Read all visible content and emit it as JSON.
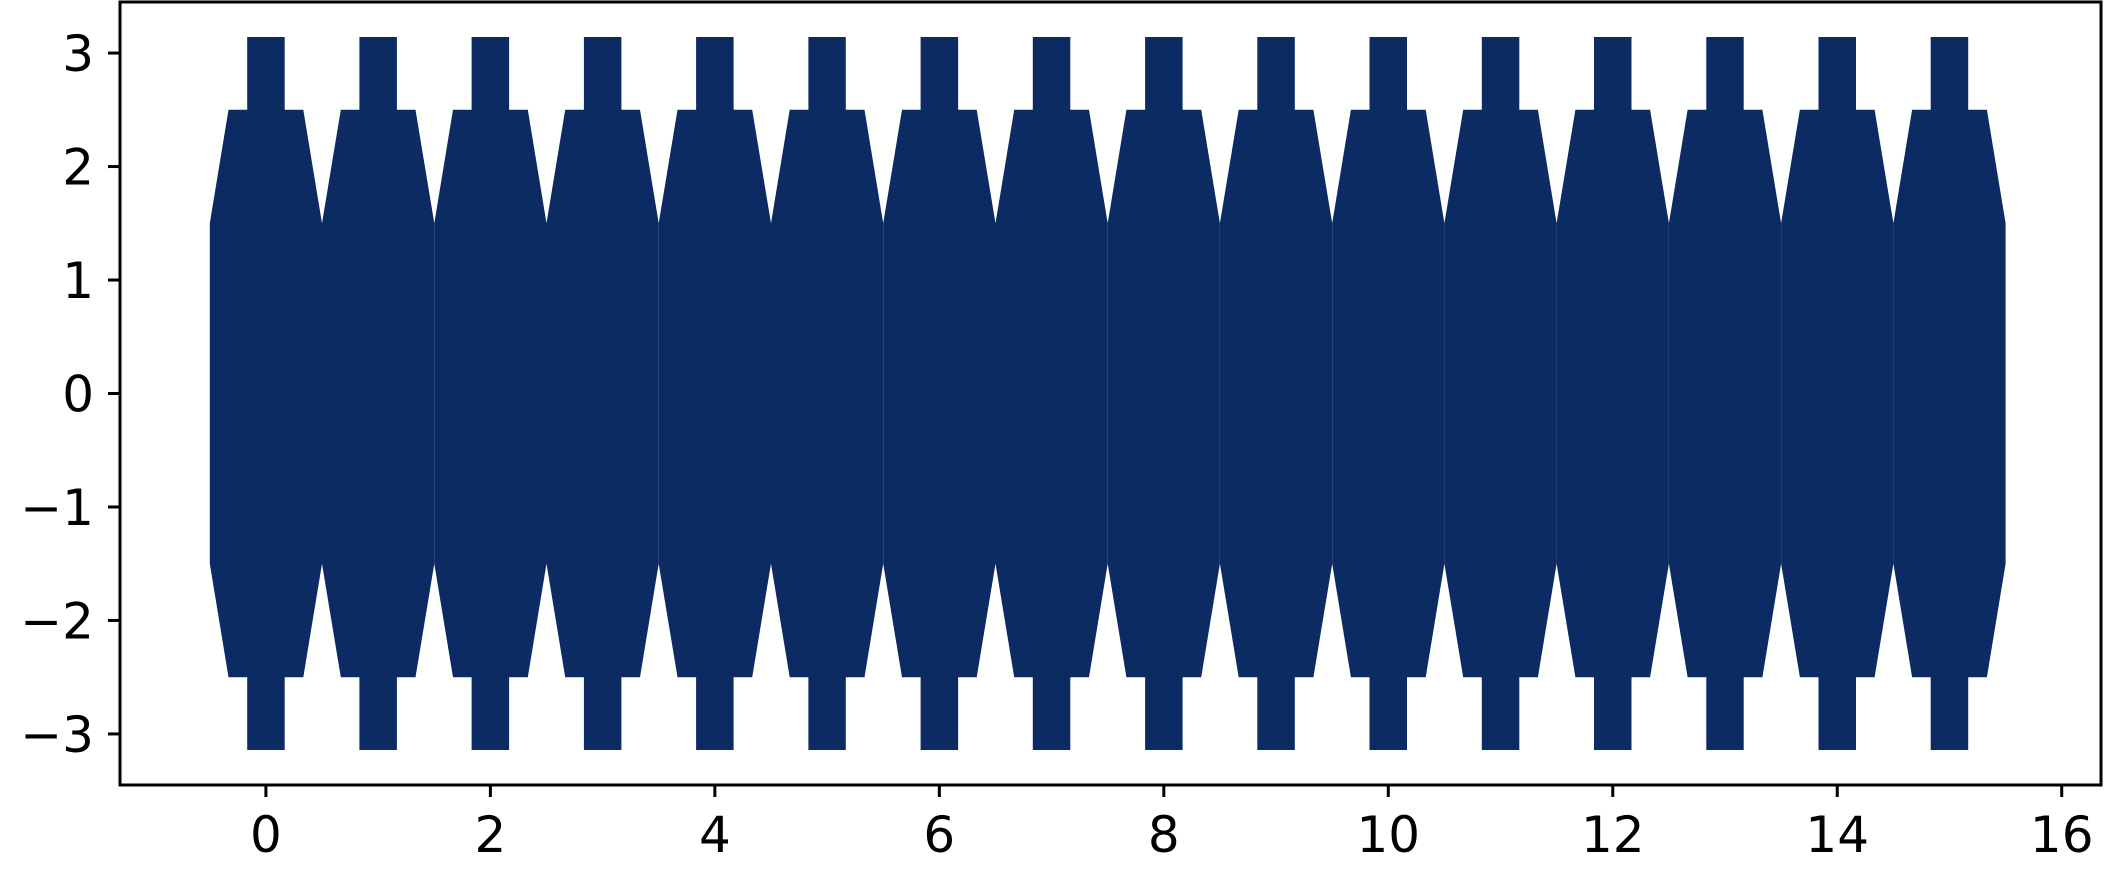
{
  "figure": {
    "type": "map",
    "projection": "interrupted gore projection (16 gores)",
    "colors": {
      "ocean": "#0d2b63",
      "land": "#1a8a4a",
      "gridlines": "#ffffff",
      "axes": "#000000",
      "background": "#ffffff"
    },
    "gores": {
      "count": 16,
      "centers": [
        0,
        1,
        2,
        3,
        4,
        5,
        6,
        7,
        8,
        9,
        10,
        11,
        12,
        13,
        14,
        15
      ],
      "half_width_equator": 0.5,
      "half_width_mid": 0.333,
      "half_width_polar": 0.167,
      "y_steps": [
        1.5,
        2.5,
        3.1416
      ]
    }
  },
  "chart_data": {
    "type": "map",
    "xlim": [
      -1.3,
      16.35
    ],
    "ylim": [
      -3.45,
      3.45
    ],
    "xticks": [
      0,
      2,
      4,
      6,
      8,
      10,
      12,
      14,
      16
    ],
    "xtick_labels": [
      "0",
      "2",
      "4",
      "6",
      "8",
      "10",
      "12",
      "14",
      "16"
    ],
    "yticks": [
      3,
      2,
      1,
      0,
      -1,
      -2,
      -3
    ],
    "ytick_labels": [
      "3",
      "2",
      "1",
      "0",
      "−1",
      "−2",
      "−3"
    ],
    "grid": true,
    "legend": "none"
  }
}
